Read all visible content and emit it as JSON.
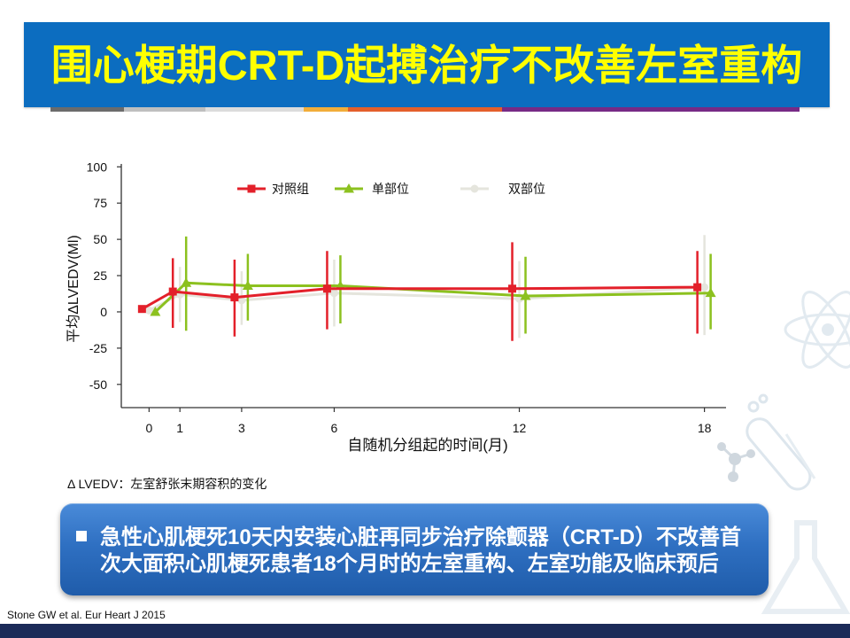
{
  "slide": {
    "title": "围心梗期CRT-D起搏治疗不改善左室重构",
    "footnote": "Δ LVEDV：左室舒张末期容积的变化",
    "summary_lines": [
      "急性心肌梗死10天内安装心脏再同步治疗除颤器（CRT-D）不改善首",
      "次大面积心肌梗死患者18个月时的左室重构、左室功能及临床预后"
    ],
    "bullet_icon": "square-bullet-icon",
    "reference": "Stone GW et al. Eur Heart J 2015",
    "decorations": [
      "atom-icon",
      "molecule-icon",
      "test-tube-icon",
      "flask-icon"
    ]
  },
  "theme": {
    "banner_color": "#0c6dc0",
    "title_color": "#ffff00",
    "footer_bar_color": "#1b2b58"
  },
  "chart_data": {
    "type": "line",
    "xlabel": "自随机分组起的时间(月)",
    "ylabel": "平均ΔLVEDV(Ml)",
    "x": [
      0,
      1,
      3,
      6,
      12,
      18
    ],
    "y_ticks": [
      100,
      75,
      50,
      25,
      0,
      -25,
      -50
    ],
    "xlim": [
      -0.9,
      18.7
    ],
    "ylim": [
      -66,
      102
    ],
    "grid": false,
    "legend_position": "top",
    "series": [
      {
        "name": "对照组",
        "color": "#e3202a",
        "marker": "square",
        "values": [
          2,
          14,
          10,
          16,
          16,
          17
        ],
        "error_low": [
          null,
          -11,
          -17,
          -12,
          -20,
          -15
        ],
        "error_high": [
          null,
          37,
          36,
          42,
          48,
          42
        ]
      },
      {
        "name": "单部位",
        "color": "#8cc11f",
        "marker": "triangle",
        "values": [
          0,
          20,
          18,
          18,
          11,
          13
        ],
        "error_low": [
          null,
          -13,
          -6,
          -8,
          -15,
          -12
        ],
        "error_high": [
          null,
          52,
          40,
          39,
          38,
          40
        ]
      },
      {
        "name": "双部位",
        "color": "#e5e5dd",
        "marker": "circle",
        "values": [
          1,
          12,
          8,
          13,
          9,
          17
        ],
        "error_low": [
          null,
          -7,
          -9,
          -10,
          -18,
          -16
        ],
        "error_high": [
          null,
          31,
          28,
          36,
          35,
          53
        ]
      }
    ]
  }
}
